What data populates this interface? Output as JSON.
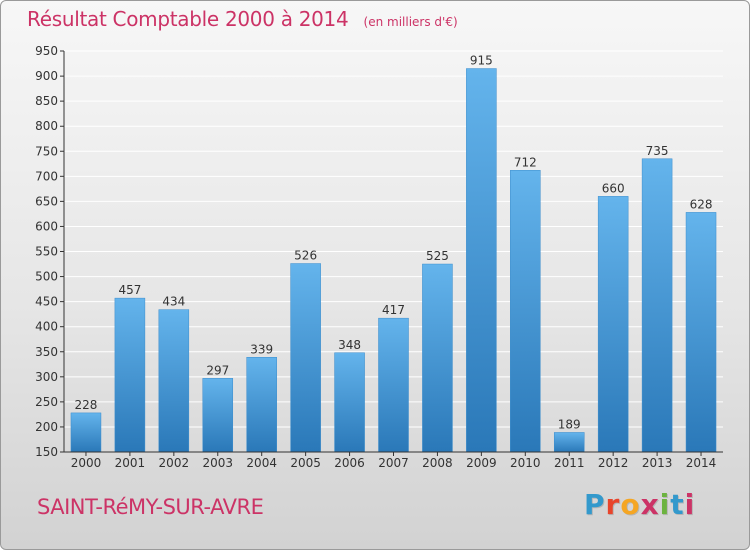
{
  "header": {
    "title": "Résultat Comptable 2000 à 2014",
    "subtitle": "(en milliers d'€)"
  },
  "commune": "SAINT-RéMY-SUR-AVRE",
  "logo": {
    "text": "Proxiti",
    "letter_colors": [
      "#3399cc",
      "#e8452c",
      "#f5a623",
      "#cc3366",
      "#6cb33f",
      "#3399cc",
      "#cc3366"
    ]
  },
  "colors": {
    "bar_light": "#64b4ec",
    "bar_dark": "#2a78b8",
    "grid": "#ffffff",
    "axis": "#333333",
    "accent": "#cc3366"
  },
  "chart_data": {
    "type": "bar",
    "categories": [
      "2000",
      "2001",
      "2002",
      "2003",
      "2004",
      "2005",
      "2006",
      "2007",
      "2008",
      "2009",
      "2010",
      "2011",
      "2012",
      "2013",
      "2014"
    ],
    "values": [
      228,
      457,
      434,
      297,
      339,
      526,
      348,
      417,
      525,
      915,
      712,
      189,
      660,
      735,
      628
    ],
    "ylim": [
      150,
      950
    ],
    "yticks": [
      150,
      200,
      250,
      300,
      350,
      400,
      450,
      500,
      550,
      600,
      650,
      700,
      750,
      800,
      850,
      900,
      950
    ],
    "grid": true,
    "data_labels": true
  }
}
